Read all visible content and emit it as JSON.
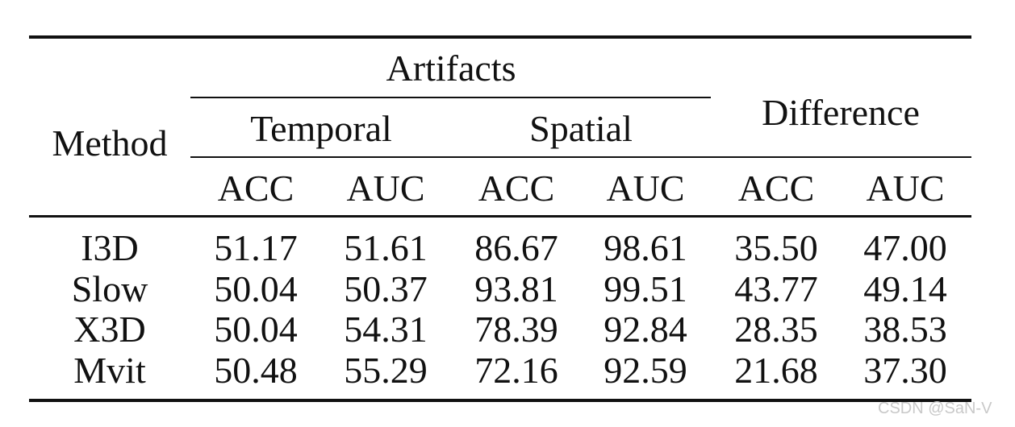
{
  "table": {
    "header": {
      "method": "Method",
      "artifacts": "Artifacts",
      "temporal": "Temporal",
      "spatial": "Spatial",
      "difference": "Difference",
      "subcolumns": [
        "ACC",
        "AUC",
        "ACC",
        "AUC",
        "ACC",
        "AUC"
      ]
    },
    "rows": [
      {
        "method": "I3D",
        "values": [
          "51.17",
          "51.61",
          "86.67",
          "98.61",
          "35.50",
          "47.00"
        ]
      },
      {
        "method": "Slow",
        "values": [
          "50.04",
          "50.37",
          "93.81",
          "99.51",
          "43.77",
          "49.14"
        ]
      },
      {
        "method": "X3D",
        "values": [
          "50.04",
          "54.31",
          "78.39",
          "92.84",
          "28.35",
          "38.53"
        ]
      },
      {
        "method": "Mvit",
        "values": [
          "50.48",
          "55.29",
          "72.16",
          "92.59",
          "21.68",
          "37.30"
        ]
      }
    ]
  },
  "watermark": "CSDN @SaN-V"
}
